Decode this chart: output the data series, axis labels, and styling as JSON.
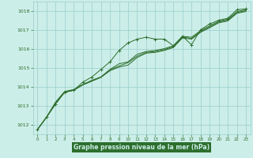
{
  "xlabel": "Graphe pression niveau de la mer (hPa)",
  "xlim": [
    -0.5,
    23.5
  ],
  "ylim": [
    1011.5,
    1018.5
  ],
  "yticks": [
    1012,
    1013,
    1014,
    1015,
    1016,
    1017,
    1018
  ],
  "xticks": [
    0,
    1,
    2,
    3,
    4,
    5,
    6,
    7,
    8,
    9,
    10,
    11,
    12,
    13,
    14,
    15,
    16,
    17,
    18,
    19,
    20,
    21,
    22,
    23
  ],
  "bg_color": "#cceee8",
  "grid_color": "#99cccc",
  "line_color": "#2d6e2d",
  "xlabel_bg": "#2d6e2d",
  "xlabel_fg": "#cceee8",
  "series_plain": [
    [
      1011.75,
      1012.4,
      1013.1,
      1013.72,
      1013.82,
      1014.1,
      1014.3,
      1014.5,
      1014.85,
      1015.05,
      1015.15,
      1015.55,
      1015.78,
      1015.82,
      1015.92,
      1016.08,
      1016.58,
      1016.52,
      1016.88,
      1017.12,
      1017.38,
      1017.48,
      1017.88,
      1017.98
    ],
    [
      1011.75,
      1012.4,
      1013.15,
      1013.73,
      1013.83,
      1014.12,
      1014.32,
      1014.52,
      1014.9,
      1015.1,
      1015.28,
      1015.62,
      1015.82,
      1015.87,
      1015.97,
      1016.12,
      1016.62,
      1016.56,
      1016.92,
      1017.17,
      1017.42,
      1017.52,
      1017.92,
      1018.02
    ],
    [
      1011.75,
      1012.4,
      1013.2,
      1013.76,
      1013.86,
      1014.12,
      1014.35,
      1014.52,
      1014.92,
      1015.22,
      1015.32,
      1015.72,
      1015.87,
      1015.92,
      1016.02,
      1016.17,
      1016.67,
      1016.62,
      1016.97,
      1017.22,
      1017.47,
      1017.57,
      1017.97,
      1018.07
    ]
  ],
  "series_marked": [
    1011.75,
    1012.4,
    1013.1,
    1013.72,
    1013.82,
    1014.25,
    1014.52,
    1014.92,
    1015.32,
    1015.92,
    1016.32,
    1016.52,
    1016.62,
    1016.52,
    1016.52,
    1016.17,
    1016.67,
    1016.22,
    1017.02,
    1017.32,
    1017.52,
    1017.62,
    1018.07,
    1018.12
  ]
}
